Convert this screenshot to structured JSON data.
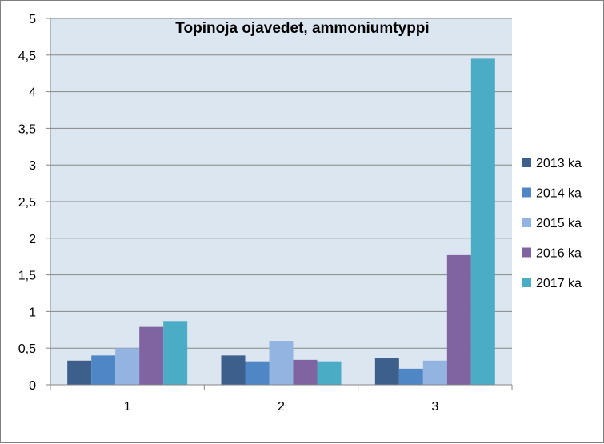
{
  "chart_data": {
    "type": "bar",
    "title": "Topinoja  ojavedet, ammoniumtyppi",
    "xlabel": "",
    "ylabel": "",
    "categories": [
      "1",
      "2",
      "3"
    ],
    "ylim": [
      0,
      5
    ],
    "yticks": [
      "0",
      "0,5",
      "1",
      "1,5",
      "2",
      "2,5",
      "3",
      "3,5",
      "4",
      "4,5",
      "5"
    ],
    "grid": true,
    "legend_position": "right",
    "series": [
      {
        "name": "2013 ka",
        "color": "#3c5f8c",
        "values": [
          0.33,
          0.4,
          0.36
        ]
      },
      {
        "name": "2014 ka",
        "color": "#4f86c6",
        "values": [
          0.4,
          0.32,
          0.22
        ]
      },
      {
        "name": "2015 ka",
        "color": "#93b4e0",
        "values": [
          0.5,
          0.6,
          0.33
        ]
      },
      {
        "name": "2016 ka",
        "color": "#8064a2",
        "values": [
          0.79,
          0.34,
          1.77
        ]
      },
      {
        "name": "2017 ka",
        "color": "#4bacc6",
        "values": [
          0.87,
          0.32,
          4.45
        ]
      }
    ],
    "plot_background": "#dce6f1"
  }
}
